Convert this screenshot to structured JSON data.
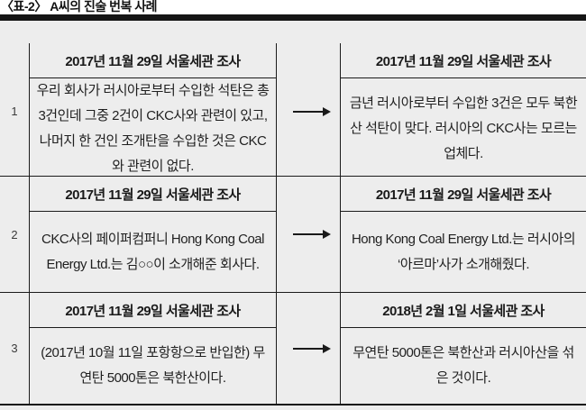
{
  "title": "〈표-2〉 A씨의 진술 번복 사례",
  "colors": {
    "page_background": "#ffffff",
    "table_background": "#ededed",
    "rule_and_text": "#1a1a1a",
    "title_bar": "#151515"
  },
  "icons": {
    "arrow": "→"
  },
  "table": {
    "rows": [
      {
        "num": "1",
        "before": {
          "header": "2017년 11월 29일 서울세관 조사",
          "body": "우리 회사가 러시아로부터 수입한 석탄은 총 3건인데 그중 2건이 CKC사와 관련이 있고, 나머지 한 건인 조개탄을 수입한 것은 CKC와 관련이 없다."
        },
        "after": {
          "header": "2017년 11월 29일 서울세관 조사",
          "body": "금년 러시아로부터 수입한 3건은 모두 북한산 석탄이 맞다. 러시아의 CKC사는 모르는 업체다."
        }
      },
      {
        "num": "2",
        "before": {
          "header": "2017년 11월 29일 서울세관 조사",
          "body": "CKC사의 페이퍼컴퍼니 Hong Kong Coal Energy Ltd.는 김○○이 소개해준 회사다."
        },
        "after": {
          "header": "2017년 11월 29일 서울세관 조사",
          "body": "Hong Kong Coal Energy Ltd.는 러시아의 ‘아르마’사가 소개해줬다."
        }
      },
      {
        "num": "3",
        "before": {
          "header": "2017년 11월 29일 서울세관 조사",
          "body": "(2017년 10월 11일 포항항으로 반입한) 무연탄 5000톤은 북한산이다."
        },
        "after": {
          "header": "2018년 2월 1일 서울세관 조사",
          "body": "무연탄 5000톤은 북한산과 러시아산을 섞은 것이다."
        }
      }
    ]
  }
}
